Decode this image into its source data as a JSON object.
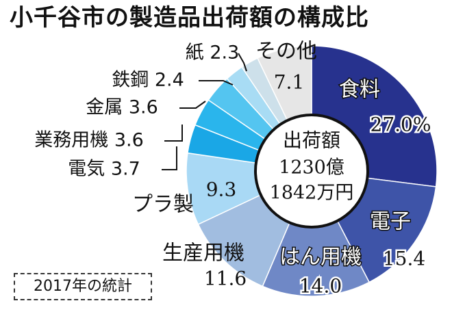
{
  "title": "小千谷市の製造品出荷額の構成比",
  "center": {
    "label": "出荷額",
    "line1": "1230億",
    "line2": "1842万円"
  },
  "note": "2017年の統計",
  "chart_data": {
    "type": "pie",
    "title": "小千谷市の製造品出荷額の構成比",
    "categories": [
      "食料",
      "電子",
      "はん用機",
      "生産用機",
      "プラ製",
      "電気",
      "業務用機",
      "金属",
      "鉄鋼",
      "紙",
      "その他"
    ],
    "values": [
      27.0,
      15.4,
      14.0,
      11.6,
      9.3,
      3.7,
      3.6,
      3.6,
      2.4,
      2.3,
      7.1
    ],
    "value_labels": [
      "27.0%",
      "15.4",
      "14.0",
      "11.6",
      "9.3",
      "3.7",
      "3.6",
      "3.6",
      "2.4",
      "2.3",
      "7.1"
    ],
    "colors": [
      "#27328e",
      "#3e54a8",
      "#6f88c6",
      "#a1bde0",
      "#a9d9f5",
      "#1aa7e6",
      "#2ab5ec",
      "#54c5f0",
      "#a8dcf4",
      "#cde0ea",
      "#e6e6e6"
    ],
    "legend": "labels-on-chart"
  }
}
